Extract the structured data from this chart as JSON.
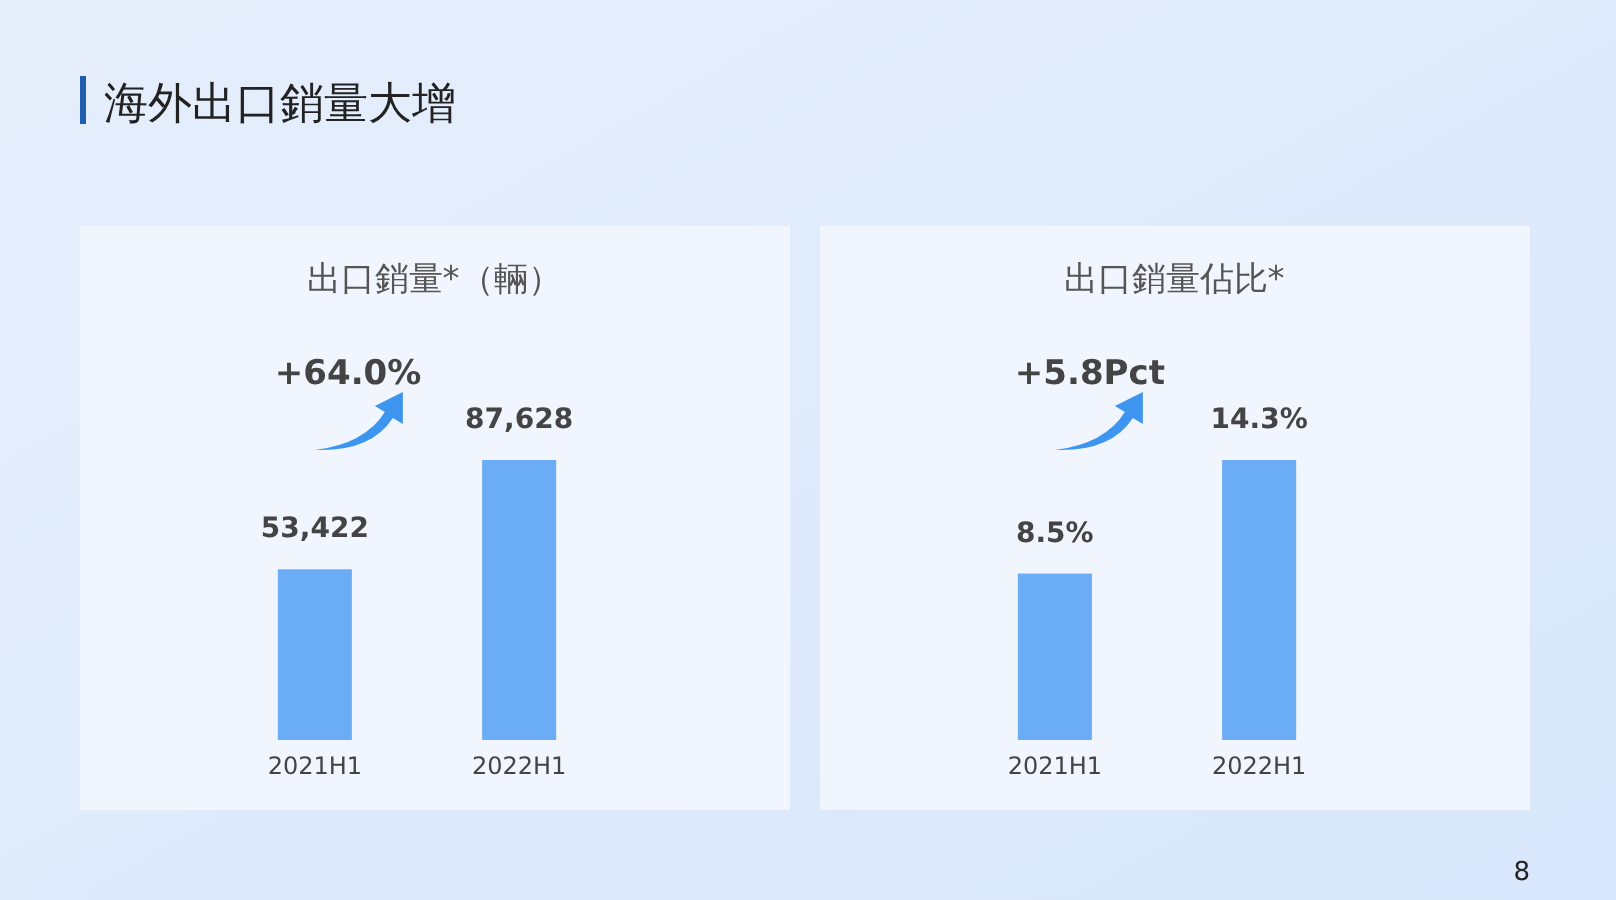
{
  "chart_data": [
    {
      "type": "bar",
      "title": "海外出口銷量大增",
      "subtitle": "出口銷量*（輛）",
      "categories": [
        "2021H1",
        "2022H1"
      ],
      "values": [
        53422,
        87628
      ],
      "value_labels": [
        "53,422",
        "87,628"
      ],
      "color": "#6aacf5",
      "annotations": [
        "+64.0%"
      ]
    },
    {
      "type": "bar",
      "title": "出口銷量佔比*",
      "categories": [
        "2021H1",
        "2022H1"
      ],
      "values": [
        8.5,
        14.3
      ],
      "value_labels": [
        "8.5%",
        "14.3%"
      ],
      "color": "#6aacf5",
      "annotations": [
        "+5.8Pct",
        "8"
      ]
    }
  ]
}
